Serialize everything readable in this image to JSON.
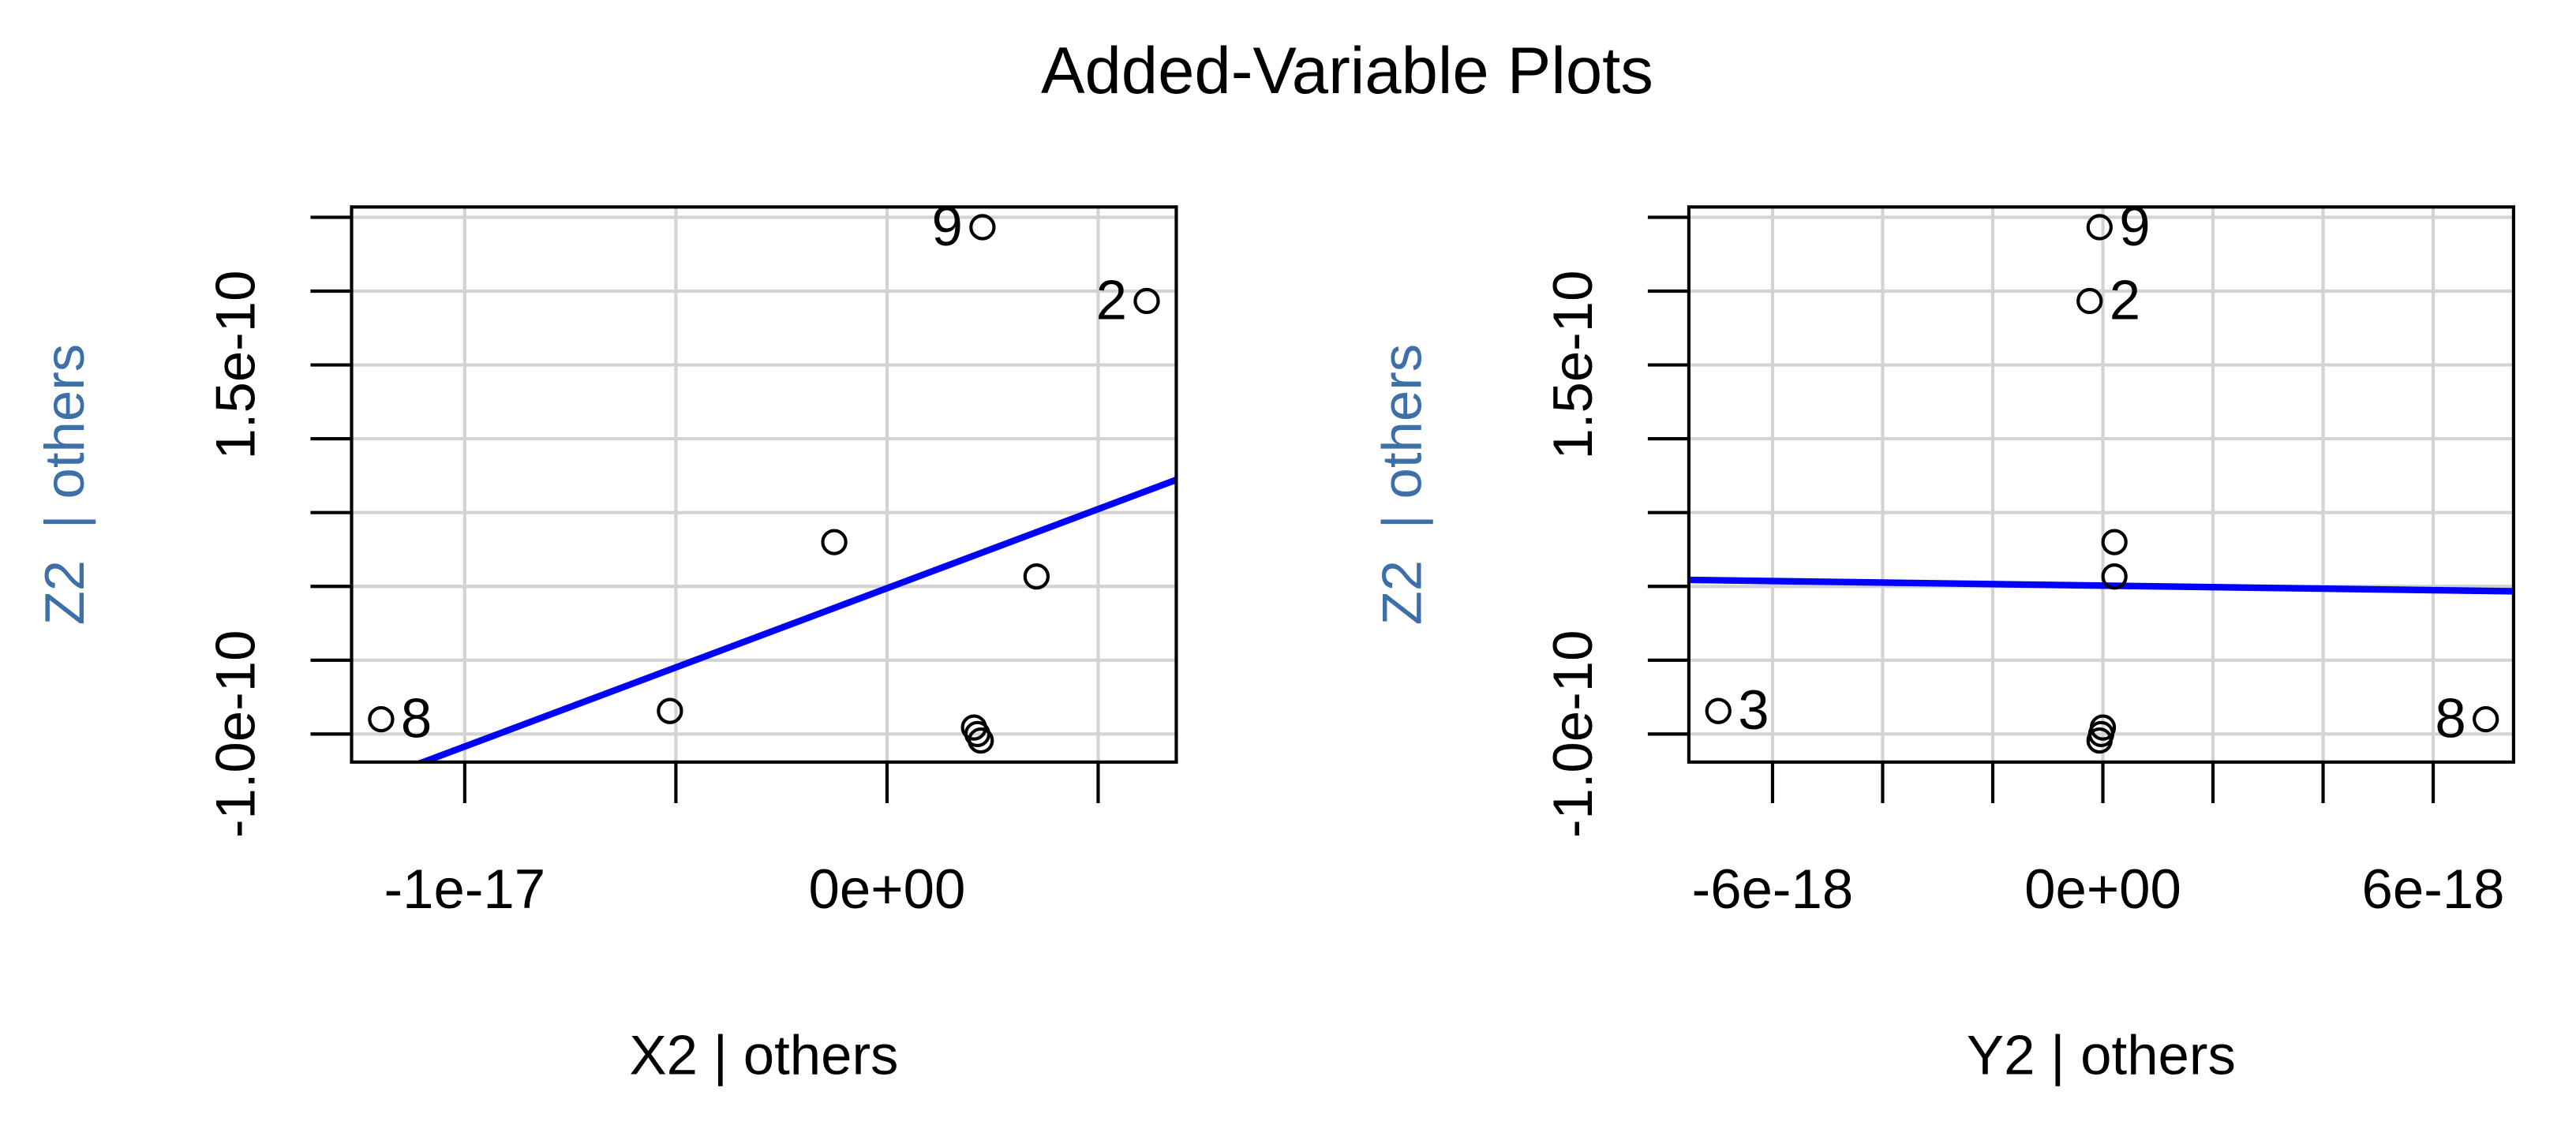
{
  "title": "Added-Variable Plots",
  "chart_data": [
    {
      "type": "scatter",
      "xlabel": "X2 | others",
      "ylabel": "Z2  | others",
      "xlim": [
        -1.268e-17,
        6.85e-18
      ],
      "ylim": [
        -1.19e-10,
        2.57e-10
      ],
      "xticks": [
        {
          "value": -1e-17,
          "label": "-1e-17"
        },
        -5e-18,
        {
          "value": 0,
          "label": "0e+00"
        },
        5e-18
      ],
      "yticks": [
        {
          "value": -1e-10,
          "label": "-1.0e-10"
        },
        -5e-11,
        0,
        5e-11,
        1e-10,
        {
          "value": 1.5e-10,
          "label": "1.5e-10"
        },
        2e-10,
        2.5e-10
      ],
      "grid": true,
      "color": "#000000",
      "x": [
        -1.198e-17,
        -5.14e-18,
        -1.25e-18,
        2.26e-18,
        3.54e-18,
        6.15e-18,
        2.06e-18,
        2.14e-18,
        2.22e-18
      ],
      "y": [
        -9e-11,
        -8.44e-11,
        3e-11,
        2.433e-10,
        6.7e-12,
        1.933e-10,
        -9.56e-11,
        -1e-10,
        -1.044e-10
      ],
      "point_labels": [
        "8",
        null,
        null,
        "9",
        null,
        "2",
        null,
        null,
        null
      ],
      "fit": {
        "color": "#0000ff",
        "x": [
          -1.268e-17,
          6.85e-18
        ],
        "y": [
          -1.372e-10,
          7.22e-11
        ]
      }
    },
    {
      "type": "scatter",
      "xlabel": "Y2 | others",
      "ylabel": "Z2  | others",
      "xlim": [
        -7.52e-18,
        7.46e-18
      ],
      "ylim": [
        -1.19e-10,
        2.57e-10
      ],
      "xticks": [
        {
          "value": -6e-18,
          "label": "-6e-18"
        },
        -4e-18,
        -2e-18,
        {
          "value": 0,
          "label": "0e+00"
        },
        2e-18,
        4e-18,
        {
          "value": 6e-18,
          "label": "6e-18"
        }
      ],
      "yticks": [
        {
          "value": -1e-10,
          "label": "-1.0e-10"
        },
        -5e-11,
        0,
        5e-11,
        1e-10,
        {
          "value": 1.5e-10,
          "label": "1.5e-10"
        },
        2e-10,
        2.5e-10
      ],
      "grid": true,
      "color": "#000000",
      "x": [
        -6.985e-18,
        -6e-20,
        -2.4e-19,
        2.1e-19,
        2.1e-19,
        6.955e-18,
        0,
        -3e-20,
        -6e-20
      ],
      "y": [
        -8.44e-11,
        2.433e-10,
        1.933e-10,
        3e-11,
        6.7e-12,
        -9e-11,
        -9.56e-11,
        -1e-10,
        -1.044e-10
      ],
      "point_labels": [
        "3",
        "9",
        "2",
        null,
        null,
        "8",
        null,
        null,
        null
      ],
      "fit": {
        "color": "#0000ff",
        "x": [
          -7.52e-18,
          7.46e-18
        ],
        "y": [
          4.4e-12,
          -3.3e-12
        ]
      }
    }
  ]
}
